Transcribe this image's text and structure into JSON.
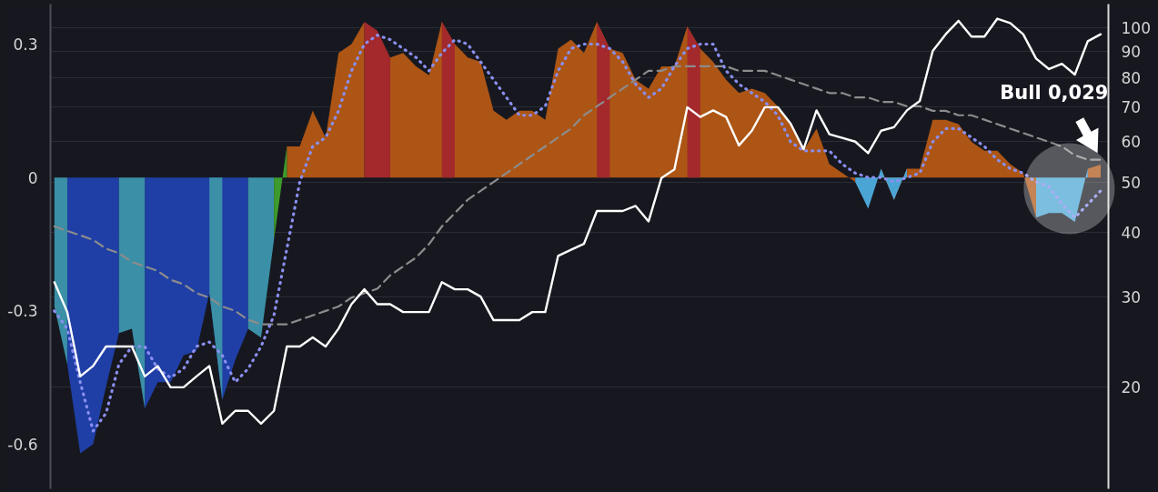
{
  "chart_data": {
    "type": "area",
    "categories": [
      null,
      null,
      null,
      null,
      null,
      null,
      null,
      null,
      null,
      null,
      null,
      null,
      null,
      null,
      null,
      null,
      null,
      null,
      null,
      null,
      null,
      null,
      null,
      null,
      null,
      null,
      null,
      null,
      null,
      null,
      null,
      null,
      null,
      null,
      null,
      null,
      null,
      null,
      null,
      null,
      null,
      null,
      null,
      null,
      null,
      null,
      null,
      null,
      null,
      null,
      null,
      null,
      null,
      null,
      null,
      null,
      null,
      null,
      null,
      null,
      null,
      null,
      null,
      null,
      null,
      null,
      null,
      null,
      null,
      null,
      null,
      null,
      null,
      null,
      null,
      null,
      null,
      null,
      null,
      null,
      null,
      null
    ],
    "series": [
      {
        "color": "#ad5515",
        "values": [
          null,
          null,
          null,
          null,
          null,
          null,
          null,
          null,
          null,
          null,
          null,
          null,
          null,
          null,
          null,
          null,
          null,
          null,
          0.07,
          0.07,
          0.15,
          0.09,
          0.28,
          0.3,
          0.35,
          null,
          0.27,
          0.28,
          0.25,
          0.23,
          0.35,
          0.3,
          0.27,
          0.26,
          0.15,
          0.13,
          0.15,
          0.15,
          0.13,
          0.29,
          0.31,
          0.28,
          0.35,
          0.29,
          0.28,
          0.22,
          0.2,
          0.25,
          0.25,
          0.34,
          0.29,
          0.26,
          0.22,
          0.19,
          0.2,
          0.19,
          0.16,
          0.12,
          0.06,
          0.11,
          0.03,
          0.01,
          -0.01,
          null,
          0.02,
          -0.05,
          0.02,
          0.02,
          0.13,
          0.13,
          0.12,
          0.08,
          0.06,
          0.06,
          0.03,
          0.01,
          -0.09,
          null,
          null,
          null,
          0.02,
          0.029
        ]
      },
      {
        "color": "#1f3fa6",
        "values": [
          null,
          -0.42,
          -0.62,
          -0.6,
          -0.47,
          -0.35,
          null,
          -0.52,
          -0.46,
          -0.46,
          -0.4,
          -0.39,
          -0.26,
          -0.5,
          -0.41,
          -0.34,
          null,
          null,
          null,
          null,
          null,
          null,
          null,
          null,
          null,
          null,
          null,
          null,
          null,
          null,
          null,
          null,
          null,
          null,
          null,
          null,
          null,
          null,
          null,
          null,
          null,
          null,
          null,
          null,
          null,
          null,
          null,
          null,
          null,
          null,
          null,
          null,
          null,
          null,
          null,
          null,
          null,
          null,
          null,
          null,
          null,
          null,
          null,
          null,
          null,
          null,
          null,
          null,
          null,
          null,
          null,
          null,
          null,
          null,
          null,
          null,
          null,
          null,
          null,
          null,
          null,
          null
        ]
      },
      {
        "color": "#3b8fa6",
        "values": [
          -0.29,
          -0.42,
          null,
          null,
          null,
          -0.35,
          -0.34,
          -0.52,
          null,
          null,
          null,
          null,
          -0.26,
          -0.5,
          null,
          -0.34,
          -0.36,
          -0.14,
          null,
          null,
          null,
          null,
          null,
          null,
          null,
          null,
          null,
          null,
          null,
          null,
          null,
          null,
          null,
          null,
          null,
          null,
          null,
          null,
          null,
          null,
          null,
          null,
          null,
          null,
          null,
          null,
          null,
          null,
          null,
          null,
          null,
          null,
          null,
          null,
          null,
          null,
          null,
          null,
          null,
          null,
          null,
          null,
          null,
          null,
          null,
          null,
          null,
          null,
          null,
          null,
          null,
          null,
          null,
          null,
          null,
          null,
          null,
          null,
          null,
          null,
          null,
          null
        ]
      },
      {
        "color": "#3e9a2c",
        "values": [
          null,
          null,
          null,
          null,
          null,
          null,
          null,
          null,
          null,
          null,
          null,
          null,
          null,
          null,
          null,
          null,
          null,
          -0.14,
          0.07,
          null,
          null,
          null,
          null,
          null,
          null,
          null,
          null,
          null,
          null,
          null,
          null,
          null,
          null,
          null,
          null,
          null,
          null,
          null,
          null,
          null,
          null,
          null,
          null,
          null,
          null,
          null,
          null,
          null,
          null,
          null,
          null,
          null,
          null,
          null,
          null,
          null,
          null,
          null,
          null,
          null,
          null,
          null,
          null,
          null,
          null,
          null,
          null,
          null,
          null,
          null,
          null,
          null,
          null,
          null,
          null,
          null,
          null,
          null,
          null,
          null,
          null,
          null
        ]
      },
      {
        "color": "#a3292c",
        "values": [
          null,
          null,
          null,
          null,
          null,
          null,
          null,
          null,
          null,
          null,
          null,
          null,
          null,
          null,
          null,
          null,
          null,
          null,
          null,
          null,
          null,
          null,
          null,
          null,
          0.35,
          0.33,
          0.27,
          null,
          null,
          null,
          0.35,
          0.3,
          null,
          null,
          null,
          null,
          null,
          null,
          null,
          null,
          null,
          null,
          0.35,
          0.29,
          null,
          null,
          null,
          null,
          null,
          0.34,
          0.29,
          null,
          null,
          null,
          null,
          null,
          null,
          null,
          null,
          null,
          null,
          null,
          null,
          null,
          null,
          null,
          null,
          null,
          null,
          null,
          null,
          null,
          null,
          null,
          null,
          null,
          null,
          null,
          null,
          null,
          null,
          null
        ]
      },
      {
        "color": "#4aa5d5",
        "values": [
          null,
          null,
          null,
          null,
          null,
          null,
          null,
          null,
          null,
          null,
          null,
          null,
          null,
          null,
          null,
          null,
          null,
          null,
          null,
          null,
          null,
          null,
          null,
          null,
          null,
          null,
          null,
          null,
          null,
          null,
          null,
          null,
          null,
          null,
          null,
          null,
          null,
          null,
          null,
          null,
          null,
          null,
          null,
          null,
          null,
          null,
          null,
          null,
          null,
          null,
          null,
          null,
          null,
          null,
          null,
          null,
          null,
          null,
          null,
          null,
          null,
          null,
          -0.01,
          -0.07,
          0.02,
          -0.05,
          0.02,
          null,
          null,
          null,
          null,
          null,
          null,
          null,
          null,
          null,
          -0.09,
          -0.08,
          -0.08,
          -0.1,
          0.02,
          null
        ]
      },
      {
        "type": "line",
        "color": "#8c8c8c",
        "line_style": "dashed",
        "values": [
          -0.11,
          -0.12,
          -0.13,
          -0.14,
          -0.16,
          -0.17,
          -0.19,
          -0.2,
          -0.21,
          -0.23,
          -0.24,
          -0.26,
          -0.27,
          -0.29,
          -0.3,
          -0.32,
          -0.33,
          -0.33,
          -0.33,
          -0.32,
          -0.31,
          -0.3,
          -0.29,
          -0.27,
          -0.26,
          -0.25,
          -0.22,
          -0.2,
          -0.18,
          -0.15,
          -0.11,
          -0.08,
          -0.05,
          -0.03,
          -0.01,
          0.01,
          0.03,
          0.05,
          0.07,
          0.09,
          0.11,
          0.14,
          0.16,
          0.18,
          0.2,
          0.22,
          0.24,
          0.24,
          0.25,
          0.25,
          0.25,
          0.25,
          0.25,
          0.24,
          0.24,
          0.24,
          0.23,
          0.22,
          0.21,
          0.2,
          0.19,
          0.19,
          0.18,
          0.18,
          0.17,
          0.17,
          0.16,
          0.16,
          0.15,
          0.15,
          0.14,
          0.14,
          0.13,
          0.12,
          0.11,
          0.1,
          0.09,
          0.08,
          0.07,
          0.05,
          0.04,
          0.04
        ]
      },
      {
        "type": "line",
        "color": "#8a8ff0",
        "line_style": "dotted",
        "values": [
          -0.3,
          -0.34,
          -0.46,
          -0.57,
          -0.53,
          -0.42,
          -0.38,
          -0.38,
          -0.43,
          -0.45,
          -0.43,
          -0.38,
          -0.37,
          -0.4,
          -0.46,
          -0.43,
          -0.38,
          -0.31,
          -0.16,
          -0.01,
          0.07,
          0.09,
          0.15,
          0.24,
          0.3,
          0.32,
          0.31,
          0.29,
          0.27,
          0.24,
          0.28,
          0.31,
          0.3,
          0.26,
          0.22,
          0.18,
          0.14,
          0.14,
          0.16,
          0.24,
          0.29,
          0.3,
          0.3,
          0.29,
          0.26,
          0.21,
          0.18,
          0.2,
          0.25,
          0.29,
          0.3,
          0.3,
          0.24,
          0.21,
          0.19,
          0.17,
          0.14,
          0.08,
          0.06,
          0.06,
          0.06,
          0.03,
          0.01,
          0,
          0,
          -0.01,
          0,
          0.01,
          0.08,
          0.11,
          0.11,
          0.09,
          0.07,
          0.04,
          0.02,
          0.01,
          -0.01,
          -0.02,
          -0.06,
          -0.09,
          -0.06,
          -0.03
        ]
      },
      {
        "type": "line",
        "color": "#ffffff",
        "axis": "y2",
        "values": [
          32,
          28,
          21,
          22,
          24,
          24,
          24,
          21,
          22,
          20,
          20,
          21,
          22,
          17,
          18,
          18,
          17,
          18,
          24,
          24,
          25,
          24,
          26,
          29,
          31,
          29,
          29,
          28,
          28,
          28,
          32,
          31,
          31,
          30,
          27,
          27,
          27,
          28,
          28,
          36,
          37,
          38,
          44,
          44,
          44,
          45,
          42,
          51,
          53,
          70,
          67,
          69,
          67,
          59,
          63,
          70,
          70,
          65,
          58,
          69,
          62,
          61,
          60,
          57,
          63,
          64,
          69,
          72,
          90,
          97,
          103,
          96,
          96,
          104,
          102,
          97,
          87,
          83,
          85,
          81,
          94,
          97
        ]
      }
    ],
    "ylim": [
      -0.7,
      0.39
    ],
    "yticks": [
      0.3,
      0,
      -0.3,
      -0.6
    ],
    "y2lim": [
      12.7,
      111
    ],
    "y2ticks": [
      20,
      30,
      40,
      50,
      60,
      70,
      80,
      90,
      100
    ],
    "log": "y2",
    "grid": "y",
    "tick_labels": "y",
    "annotations": [
      "Bull 0,029"
    ]
  }
}
